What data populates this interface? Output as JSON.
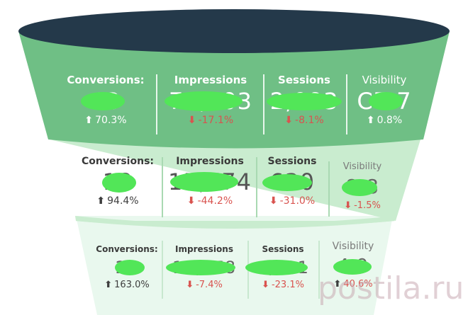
{
  "colors": {
    "top_rim": "#24394a",
    "tier1_bg": "#6fbf85",
    "tier2_bg": "#c9eccf",
    "tier3_bg": "#e9f8ee",
    "up": "#3e3e3e",
    "down": "#d9534f",
    "scribble": "#52e658",
    "watermark": "#c9aab3"
  },
  "watermark_text": "postila.ru",
  "tiers": [
    {
      "metrics": [
        {
          "label": "Conversions:",
          "value": "63",
          "change": "70.3%",
          "direction": "up"
        },
        {
          "label": "Impressions",
          "value": "71,303",
          "change": "-17.1%",
          "direction": "down"
        },
        {
          "label": "Sessions",
          "value": "2,093",
          "change": "-8.1%",
          "direction": "down"
        },
        {
          "label": "Visibility",
          "value": "C7.7",
          "change": "0.8%",
          "direction": "up"
        }
      ]
    },
    {
      "metrics": [
        {
          "label": "Conversions:",
          "value": "18",
          "change": "94.4%",
          "direction": "up"
        },
        {
          "label": "Impressions",
          "value": "15,774",
          "change": "-44.2%",
          "direction": "down"
        },
        {
          "label": "Sessions",
          "value": "630",
          "change": "-31.0%",
          "direction": "down"
        },
        {
          "label": "Visibility",
          "value": "8.8",
          "change": "-1.5%",
          "direction": "down"
        }
      ]
    },
    {
      "metrics": [
        {
          "label": "Conversions:",
          "value": "26",
          "change": "163.0%",
          "direction": "up"
        },
        {
          "label": "Impressions",
          "value": "15,778",
          "change": "-7.4%",
          "direction": "down"
        },
        {
          "label": "Sessions",
          "value": "1,121",
          "change": "-23.1%",
          "direction": "down"
        },
        {
          "label": "Visibility",
          "value": "4.9",
          "change": "40.6%",
          "direction": "up"
        }
      ]
    }
  ]
}
